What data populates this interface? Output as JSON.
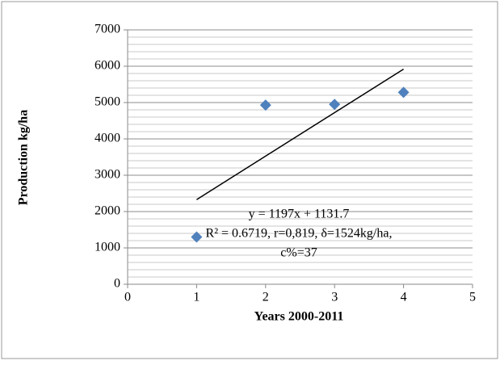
{
  "chart_data": {
    "type": "scatter",
    "x": [
      1,
      2,
      3,
      4
    ],
    "values": [
      1300,
      4930,
      4950,
      5280
    ],
    "color": "#4f81bd",
    "trendline": {
      "x": [
        1,
        4
      ],
      "values": [
        2328.7,
        5919.7
      ],
      "color": "#000000"
    },
    "annotation": [
      "y = 1197x + 1131.7",
      "R² = 0.6719, r=0,819, δ=1524kg/ha,",
      "c%=37"
    ],
    "xlabel": "Years  2000-2011",
    "ylabel": "Production  kg/ha",
    "xlim": [
      0,
      5
    ],
    "xticks": [
      0,
      1,
      2,
      3,
      4,
      5
    ],
    "ylim": [
      0,
      7000
    ],
    "yticks": [
      0,
      1000,
      2000,
      3000,
      4000,
      5000,
      6000,
      7000
    ],
    "yminorticks": [
      200,
      400,
      600,
      800,
      1200,
      1400,
      1600,
      1800,
      2200,
      2400,
      2600,
      2800,
      3200,
      3400,
      3600,
      3800,
      4200,
      4400,
      4600,
      4800,
      5200,
      5400,
      5600,
      5800,
      6200,
      6400,
      6600,
      6800
    ],
    "grid": true
  }
}
